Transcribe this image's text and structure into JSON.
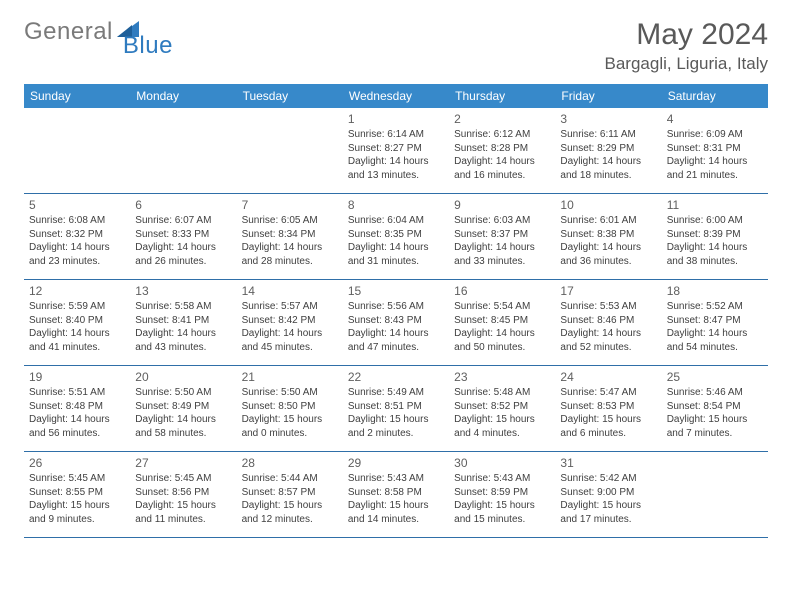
{
  "logo": {
    "part1": "General",
    "part2": "Blue"
  },
  "title": {
    "month": "May 2024",
    "location": "Bargagli, Liguria, Italy"
  },
  "colors": {
    "header_bg": "#3789ca",
    "header_text": "#ffffff",
    "border": "#2f6fa8",
    "daynum": "#5f5f5f",
    "info_text": "#404040",
    "title_text": "#595959",
    "logo_gray": "#7a7a7a",
    "logo_blue": "#2f7bbf"
  },
  "weekdays": [
    "Sunday",
    "Monday",
    "Tuesday",
    "Wednesday",
    "Thursday",
    "Friday",
    "Saturday"
  ],
  "leading_blanks": 3,
  "days": [
    {
      "n": "1",
      "sr": "6:14 AM",
      "ss": "8:27 PM",
      "dl": "14 hours and 13 minutes."
    },
    {
      "n": "2",
      "sr": "6:12 AM",
      "ss": "8:28 PM",
      "dl": "14 hours and 16 minutes."
    },
    {
      "n": "3",
      "sr": "6:11 AM",
      "ss": "8:29 PM",
      "dl": "14 hours and 18 minutes."
    },
    {
      "n": "4",
      "sr": "6:09 AM",
      "ss": "8:31 PM",
      "dl": "14 hours and 21 minutes."
    },
    {
      "n": "5",
      "sr": "6:08 AM",
      "ss": "8:32 PM",
      "dl": "14 hours and 23 minutes."
    },
    {
      "n": "6",
      "sr": "6:07 AM",
      "ss": "8:33 PM",
      "dl": "14 hours and 26 minutes."
    },
    {
      "n": "7",
      "sr": "6:05 AM",
      "ss": "8:34 PM",
      "dl": "14 hours and 28 minutes."
    },
    {
      "n": "8",
      "sr": "6:04 AM",
      "ss": "8:35 PM",
      "dl": "14 hours and 31 minutes."
    },
    {
      "n": "9",
      "sr": "6:03 AM",
      "ss": "8:37 PM",
      "dl": "14 hours and 33 minutes."
    },
    {
      "n": "10",
      "sr": "6:01 AM",
      "ss": "8:38 PM",
      "dl": "14 hours and 36 minutes."
    },
    {
      "n": "11",
      "sr": "6:00 AM",
      "ss": "8:39 PM",
      "dl": "14 hours and 38 minutes."
    },
    {
      "n": "12",
      "sr": "5:59 AM",
      "ss": "8:40 PM",
      "dl": "14 hours and 41 minutes."
    },
    {
      "n": "13",
      "sr": "5:58 AM",
      "ss": "8:41 PM",
      "dl": "14 hours and 43 minutes."
    },
    {
      "n": "14",
      "sr": "5:57 AM",
      "ss": "8:42 PM",
      "dl": "14 hours and 45 minutes."
    },
    {
      "n": "15",
      "sr": "5:56 AM",
      "ss": "8:43 PM",
      "dl": "14 hours and 47 minutes."
    },
    {
      "n": "16",
      "sr": "5:54 AM",
      "ss": "8:45 PM",
      "dl": "14 hours and 50 minutes."
    },
    {
      "n": "17",
      "sr": "5:53 AM",
      "ss": "8:46 PM",
      "dl": "14 hours and 52 minutes."
    },
    {
      "n": "18",
      "sr": "5:52 AM",
      "ss": "8:47 PM",
      "dl": "14 hours and 54 minutes."
    },
    {
      "n": "19",
      "sr": "5:51 AM",
      "ss": "8:48 PM",
      "dl": "14 hours and 56 minutes."
    },
    {
      "n": "20",
      "sr": "5:50 AM",
      "ss": "8:49 PM",
      "dl": "14 hours and 58 minutes."
    },
    {
      "n": "21",
      "sr": "5:50 AM",
      "ss": "8:50 PM",
      "dl": "15 hours and 0 minutes."
    },
    {
      "n": "22",
      "sr": "5:49 AM",
      "ss": "8:51 PM",
      "dl": "15 hours and 2 minutes."
    },
    {
      "n": "23",
      "sr": "5:48 AM",
      "ss": "8:52 PM",
      "dl": "15 hours and 4 minutes."
    },
    {
      "n": "24",
      "sr": "5:47 AM",
      "ss": "8:53 PM",
      "dl": "15 hours and 6 minutes."
    },
    {
      "n": "25",
      "sr": "5:46 AM",
      "ss": "8:54 PM",
      "dl": "15 hours and 7 minutes."
    },
    {
      "n": "26",
      "sr": "5:45 AM",
      "ss": "8:55 PM",
      "dl": "15 hours and 9 minutes."
    },
    {
      "n": "27",
      "sr": "5:45 AM",
      "ss": "8:56 PM",
      "dl": "15 hours and 11 minutes."
    },
    {
      "n": "28",
      "sr": "5:44 AM",
      "ss": "8:57 PM",
      "dl": "15 hours and 12 minutes."
    },
    {
      "n": "29",
      "sr": "5:43 AM",
      "ss": "8:58 PM",
      "dl": "15 hours and 14 minutes."
    },
    {
      "n": "30",
      "sr": "5:43 AM",
      "ss": "8:59 PM",
      "dl": "15 hours and 15 minutes."
    },
    {
      "n": "31",
      "sr": "5:42 AM",
      "ss": "9:00 PM",
      "dl": "15 hours and 17 minutes."
    }
  ],
  "labels": {
    "sunrise": "Sunrise:",
    "sunset": "Sunset:",
    "daylight": "Daylight:"
  }
}
